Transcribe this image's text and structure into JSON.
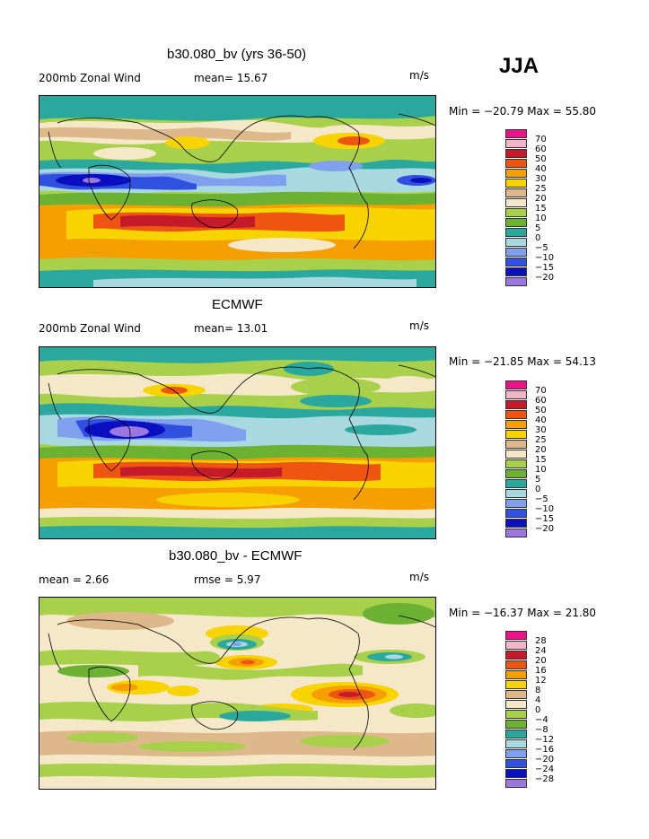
{
  "season": "JJA",
  "panels": [
    {
      "title": "b30.080_bv (yrs 36-50)",
      "left_label": "200mb Zonal Wind",
      "stat1": "mean=  15.67",
      "stat2": "",
      "units": "m/s",
      "minmax": "Min = −20.79 Max =  55.80",
      "colorbar": {
        "labels": [
          "70",
          "60",
          "50",
          "40",
          "30",
          "25",
          "20",
          "15",
          "10",
          "5",
          "0",
          "−5",
          "−10",
          "−15",
          "−20"
        ],
        "colors": [
          "#ee1188",
          "#f5b5c8",
          "#c41a2a",
          "#ee5511",
          "#f5a000",
          "#f7d400",
          "#dcb88a",
          "#f5e8c8",
          "#a8d04a",
          "#6cb232",
          "#2aa89e",
          "#a8d8e0",
          "#7fa0ee",
          "#3050e0",
          "#0a10c0",
          "#9a78e0"
        ]
      }
    },
    {
      "title": "ECMWF",
      "left_label": "200mb Zonal Wind",
      "stat1": "mean=  13.01",
      "stat2": "",
      "units": "m/s",
      "minmax": "Min = −21.85 Max =  54.13",
      "colorbar": {
        "labels": [
          "70",
          "60",
          "50",
          "40",
          "30",
          "25",
          "20",
          "15",
          "10",
          "5",
          "0",
          "−5",
          "−10",
          "−15",
          "−20"
        ],
        "colors": [
          "#ee1188",
          "#f5b5c8",
          "#c41a2a",
          "#ee5511",
          "#f5a000",
          "#f7d400",
          "#dcb88a",
          "#f5e8c8",
          "#a8d04a",
          "#6cb232",
          "#2aa89e",
          "#a8d8e0",
          "#7fa0ee",
          "#3050e0",
          "#0a10c0",
          "#9a78e0"
        ]
      }
    },
    {
      "title": "b30.080_bv - ECMWF",
      "left_label": "mean =   2.66",
      "stat1": "",
      "stat2": "rmse =   5.97",
      "units": "m/s",
      "minmax": "Min = −16.37 Max =  21.80",
      "colorbar": {
        "labels": [
          "28",
          "24",
          "20",
          "16",
          "12",
          "8",
          "4",
          "0",
          "−4",
          "−8",
          "−12",
          "−16",
          "−20",
          "−24",
          "−28"
        ],
        "colors": [
          "#ee1188",
          "#f5b5c8",
          "#c41a2a",
          "#ee5511",
          "#f5a000",
          "#f7d400",
          "#dcb88a",
          "#f5e8c8",
          "#a8d04a",
          "#6cb232",
          "#2aa89e",
          "#a8d8e0",
          "#7fa0ee",
          "#3050e0",
          "#0a10c0",
          "#9a78e0"
        ]
      }
    }
  ]
}
